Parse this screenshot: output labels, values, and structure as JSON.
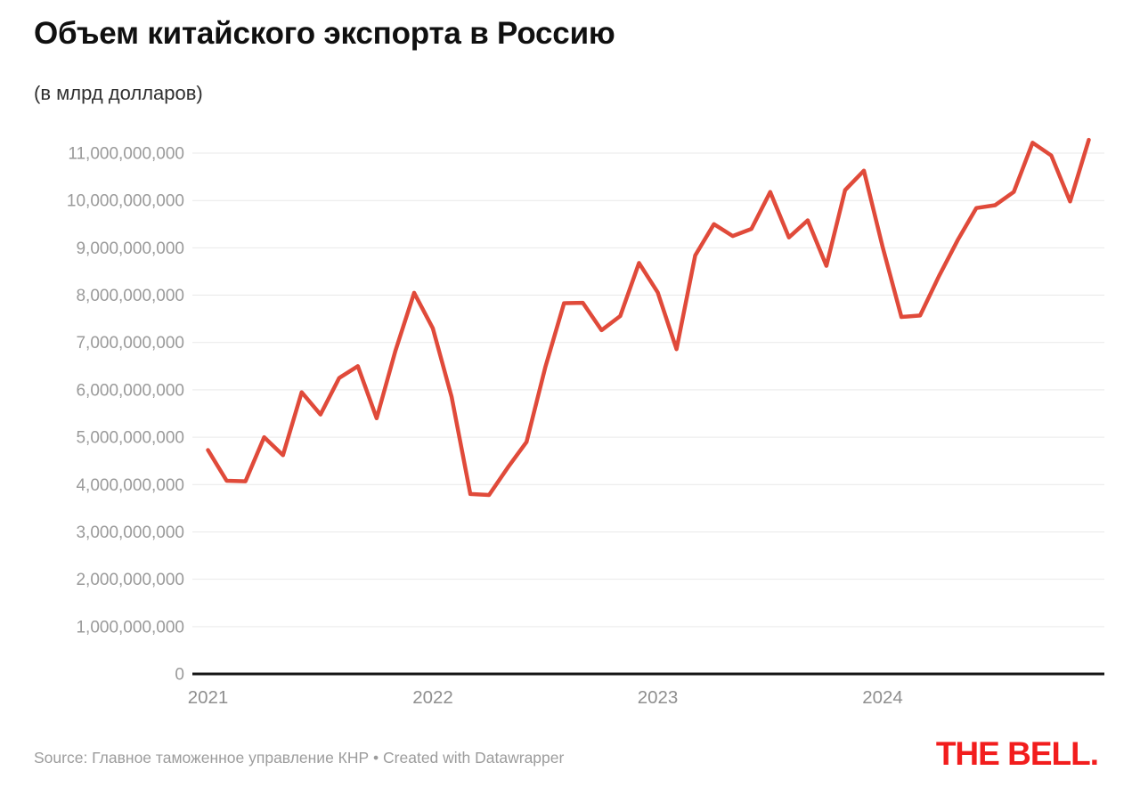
{
  "header": {
    "title": "Объем китайского экспорта в Россию",
    "subtitle": "(в млрд долларов)"
  },
  "footer": {
    "source": "Source: Главное таможенное управление КНР • Created with Datawrapper",
    "logo": "THE BELL."
  },
  "chart_data": {
    "type": "line",
    "title": "Объем китайского экспорта в Россию",
    "units_subtitle": "(в млрд долларов)",
    "series_name": "Объем китайского экспорта в Россию",
    "grid": "horizontal",
    "legend": "none",
    "x": [
      "2021-01",
      "2021-02",
      "2021-03",
      "2021-04",
      "2021-05",
      "2021-06",
      "2021-07",
      "2021-08",
      "2021-09",
      "2021-10",
      "2021-11",
      "2021-12",
      "2022-01",
      "2022-02",
      "2022-03",
      "2022-04",
      "2022-05",
      "2022-06",
      "2022-07",
      "2022-08",
      "2022-09",
      "2022-10",
      "2022-11",
      "2022-12",
      "2023-01",
      "2023-02",
      "2023-03",
      "2023-04",
      "2023-05",
      "2023-06",
      "2023-07",
      "2023-08",
      "2023-09",
      "2023-10",
      "2023-11",
      "2023-12",
      "2024-01",
      "2024-02",
      "2024-03",
      "2024-04",
      "2024-05",
      "2024-06",
      "2024-07",
      "2024-08",
      "2024-09",
      "2024-10",
      "2024-11",
      "2024-12"
    ],
    "values": [
      4730000000,
      4080000000,
      4070000000,
      5000000000,
      4620000000,
      5950000000,
      5480000000,
      6250000000,
      6500000000,
      5400000000,
      6820000000,
      8050000000,
      7300000000,
      5850000000,
      3800000000,
      3780000000,
      4360000000,
      4900000000,
      6480000000,
      7830000000,
      7840000000,
      7260000000,
      7560000000,
      8680000000,
      8060000000,
      6860000000,
      8840000000,
      9500000000,
      9250000000,
      9400000000,
      10180000000,
      9220000000,
      9580000000,
      8620000000,
      10220000000,
      10630000000,
      9020000000,
      7540000000,
      7570000000,
      8400000000,
      9160000000,
      9840000000,
      9900000000,
      10180000000,
      11220000000,
      10950000000,
      9980000000,
      11280000000
    ],
    "x_tick_labels": [
      "2021",
      "2022",
      "2023",
      "2024"
    ],
    "y_ticks": [
      0,
      1000000000,
      2000000000,
      3000000000,
      4000000000,
      5000000000,
      6000000000,
      7000000000,
      8000000000,
      9000000000,
      10000000000,
      11000000000
    ],
    "ylim": [
      0,
      11400000000
    ],
    "colors": {
      "line": "#e04a3a",
      "grid": "#e9e9e9",
      "baseline": "#161616",
      "y_tick_label": "#9a9a9a",
      "x_tick_label": "#8f8f8f",
      "logo_red": "#f21d1d"
    }
  }
}
